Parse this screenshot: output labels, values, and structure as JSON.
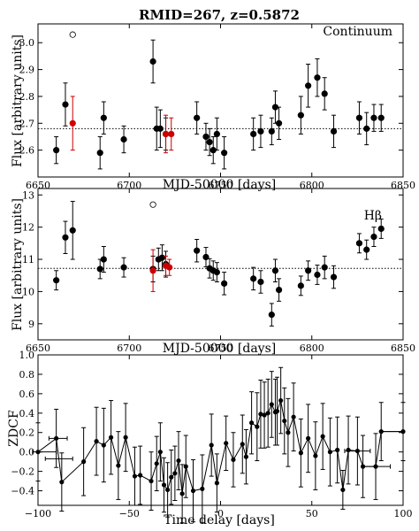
{
  "chart_data": [
    {
      "type": "scatter",
      "title": "RMID=267, z=0.5872",
      "annotation": "Continuum",
      "xlabel": "MJD-50000 [days]",
      "ylabel": "Flux [arbitrary units]",
      "xlim": [
        6650,
        6850
      ],
      "ylim": [
        2.5,
        3.07
      ],
      "xticks": [
        6650,
        6700,
        6750,
        6800,
        6850
      ],
      "yticks": [
        2.6,
        2.7,
        2.8,
        2.9,
        3.0
      ],
      "mean_line": 2.68,
      "series": [
        {
          "color": "#000000",
          "x": [
            6660,
            6665,
            6684,
            6686,
            6697,
            6713,
            6715,
            6717,
            6720,
            6737,
            6742,
            6744,
            6746,
            6748,
            6752,
            6768,
            6772,
            6778,
            6780,
            6782,
            6794,
            6798,
            6803,
            6807,
            6812,
            6826,
            6830,
            6834,
            6838
          ],
          "y": [
            2.6,
            2.77,
            2.59,
            2.72,
            2.64,
            2.93,
            2.68,
            2.68,
            2.66,
            2.72,
            2.65,
            2.63,
            2.6,
            2.66,
            2.59,
            2.66,
            2.67,
            2.67,
            2.76,
            2.7,
            2.73,
            2.84,
            2.87,
            2.81,
            2.67,
            2.72,
            2.68,
            2.72,
            2.72
          ],
          "yerr": [
            0.05,
            0.08,
            0.06,
            0.06,
            0.05,
            0.08,
            0.08,
            0.07,
            0.06,
            0.06,
            0.05,
            0.05,
            0.05,
            0.06,
            0.06,
            0.06,
            0.06,
            0.05,
            0.06,
            0.06,
            0.07,
            0.08,
            0.07,
            0.06,
            0.06,
            0.06,
            0.06,
            0.05,
            0.05
          ]
        },
        {
          "color": "#cc0000",
          "x": [
            6669,
            6720,
            6723
          ],
          "y": [
            2.7,
            2.66,
            2.66
          ],
          "yerr": [
            0.1,
            0.07,
            0.06
          ]
        },
        {
          "color": "#000000",
          "marker": "open",
          "x": [
            6669
          ],
          "y": [
            3.03
          ]
        }
      ]
    },
    {
      "type": "scatter",
      "annotation": "Hβ",
      "xlabel": "MJD-50000 [days]",
      "ylabel": "Flux [arbitrary units]",
      "xlim": [
        6650,
        6850
      ],
      "ylim": [
        8.5,
        13.2
      ],
      "xticks": [
        6650,
        6700,
        6750,
        6800,
        6850
      ],
      "yticks": [
        9,
        10,
        11,
        12,
        13
      ],
      "mean_line": 10.72,
      "series": [
        {
          "color": "#000000",
          "x": [
            6660,
            6665,
            6669,
            6684,
            6686,
            6697,
            6713,
            6716,
            6718,
            6720,
            6737,
            6742,
            6744,
            6746,
            6748,
            6752,
            6768,
            6772,
            6778,
            6780,
            6782,
            6794,
            6798,
            6803,
            6807,
            6812,
            6826,
            6830,
            6834,
            6838
          ],
          "y": [
            10.35,
            11.68,
            11.9,
            10.7,
            11.0,
            10.75,
            10.7,
            11.0,
            11.05,
            10.85,
            11.27,
            11.07,
            10.72,
            10.65,
            10.6,
            10.25,
            10.4,
            10.3,
            9.28,
            10.65,
            10.05,
            10.18,
            10.65,
            10.52,
            10.75,
            10.45,
            11.5,
            11.3,
            11.7,
            11.95
          ],
          "yerr": [
            0.3,
            0.5,
            0.9,
            0.3,
            0.4,
            0.3,
            0.4,
            0.35,
            0.4,
            0.4,
            0.35,
            0.3,
            0.3,
            0.3,
            0.3,
            0.35,
            0.35,
            0.35,
            0.35,
            0.35,
            0.35,
            0.3,
            0.3,
            0.3,
            0.35,
            0.35,
            0.3,
            0.3,
            0.3,
            0.3
          ]
        },
        {
          "color": "#cc0000",
          "x": [
            6713,
            6720,
            6722
          ],
          "y": [
            10.65,
            10.8,
            10.75
          ],
          "yerr": [
            0.65,
            0.3,
            0.25
          ]
        },
        {
          "color": "#000000",
          "marker": "open",
          "x": [
            6713
          ],
          "y": [
            12.7
          ]
        }
      ]
    },
    {
      "type": "line",
      "xlabel": "Time delay [days]",
      "ylabel": "ZDCF",
      "xlim": [
        -100,
        100
      ],
      "ylim": [
        -0.55,
        1.0
      ],
      "xticks": [
        -100,
        -50,
        0,
        50,
        100
      ],
      "yticks": [
        -0.4,
        -0.2,
        0.0,
        0.2,
        0.4,
        0.6,
        0.8,
        1.0
      ],
      "series": [
        {
          "color": "#000000",
          "x": [
            -100,
            -90,
            -87,
            -75,
            -68,
            -64,
            -60,
            -56,
            -52,
            -47,
            -44,
            -38,
            -35,
            -33,
            -31,
            -29,
            -27,
            -25,
            -23,
            -21,
            -19,
            -15,
            -10,
            -5,
            -2,
            3,
            7,
            12,
            14,
            17,
            20,
            22,
            24,
            26,
            28,
            30,
            31,
            33,
            35,
            37,
            40,
            44,
            48,
            52,
            56,
            60,
            64,
            67,
            70,
            75,
            78,
            85,
            88,
            100
          ],
          "y": [
            0.0,
            0.14,
            -0.31,
            -0.1,
            0.11,
            0.07,
            0.15,
            -0.14,
            0.15,
            -0.25,
            -0.24,
            -0.3,
            -0.12,
            0.0,
            -0.34,
            -0.39,
            -0.26,
            -0.22,
            -0.09,
            -0.43,
            -0.15,
            -0.4,
            -0.38,
            0.07,
            -0.32,
            0.09,
            -0.08,
            0.08,
            -0.05,
            0.3,
            0.26,
            0.39,
            0.38,
            0.4,
            0.49,
            0.41,
            0.42,
            0.53,
            0.32,
            0.2,
            0.36,
            -0.01,
            0.14,
            -0.04,
            0.16,
            0.0,
            0.02,
            -0.39,
            0.02,
            0.01,
            -0.15,
            -0.15,
            0.21,
            0.21
          ],
          "yerr": [
            0.3,
            0.3,
            0.3,
            0.35,
            0.35,
            0.38,
            0.38,
            0.35,
            0.35,
            0.3,
            0.3,
            0.3,
            0.28,
            0.3,
            0.28,
            0.28,
            0.28,
            0.28,
            0.3,
            0.3,
            0.32,
            0.32,
            0.35,
            0.32,
            0.3,
            0.28,
            0.28,
            0.3,
            0.28,
            0.32,
            0.35,
            0.35,
            0.34,
            0.35,
            0.34,
            0.34,
            0.35,
            0.34,
            0.34,
            0.35,
            0.35,
            0.35,
            0.35,
            0.35,
            0.34,
            0.35,
            0.34,
            0.2,
            0.35,
            0.35,
            0.32,
            0.34,
            0.3,
            0.3
          ],
          "xerr_points": [
            {
              "x": -95,
              "y": 0.0,
              "xlo": 8,
              "xhi": 5
            },
            {
              "x": -90,
              "y": 0.14,
              "xlo": 4,
              "xhi": 6
            },
            {
              "x": -86,
              "y": -0.07,
              "xlo": 10,
              "xhi": 5
            },
            {
              "x": 75,
              "y": 0.01,
              "xlo": 7,
              "xhi": 7
            },
            {
              "x": 88,
              "y": -0.15,
              "xlo": 10,
              "xhi": 5
            },
            {
              "x": 95,
              "y": 0.21,
              "xlo": 7,
              "xhi": 5
            }
          ]
        }
      ]
    }
  ]
}
